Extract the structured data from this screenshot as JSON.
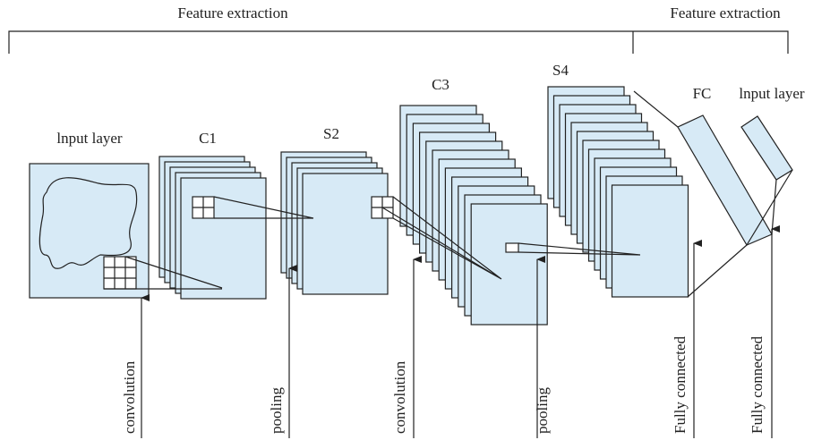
{
  "header": {
    "sections": [
      {
        "label": "Feature extraction"
      },
      {
        "label": "Feature extraction"
      }
    ]
  },
  "layers": [
    {
      "label": "lnput layer"
    },
    {
      "label": "C1"
    },
    {
      "label": "S2"
    },
    {
      "label": "C3"
    },
    {
      "label": "S4"
    },
    {
      "label": "FC"
    },
    {
      "label": "lnput layer"
    }
  ],
  "operations": [
    {
      "label": "convolution"
    },
    {
      "label": "pooling"
    },
    {
      "label": "convolution"
    },
    {
      "label": "pooling"
    },
    {
      "label": "Fully connected"
    },
    {
      "label": "Fully connected"
    }
  ]
}
